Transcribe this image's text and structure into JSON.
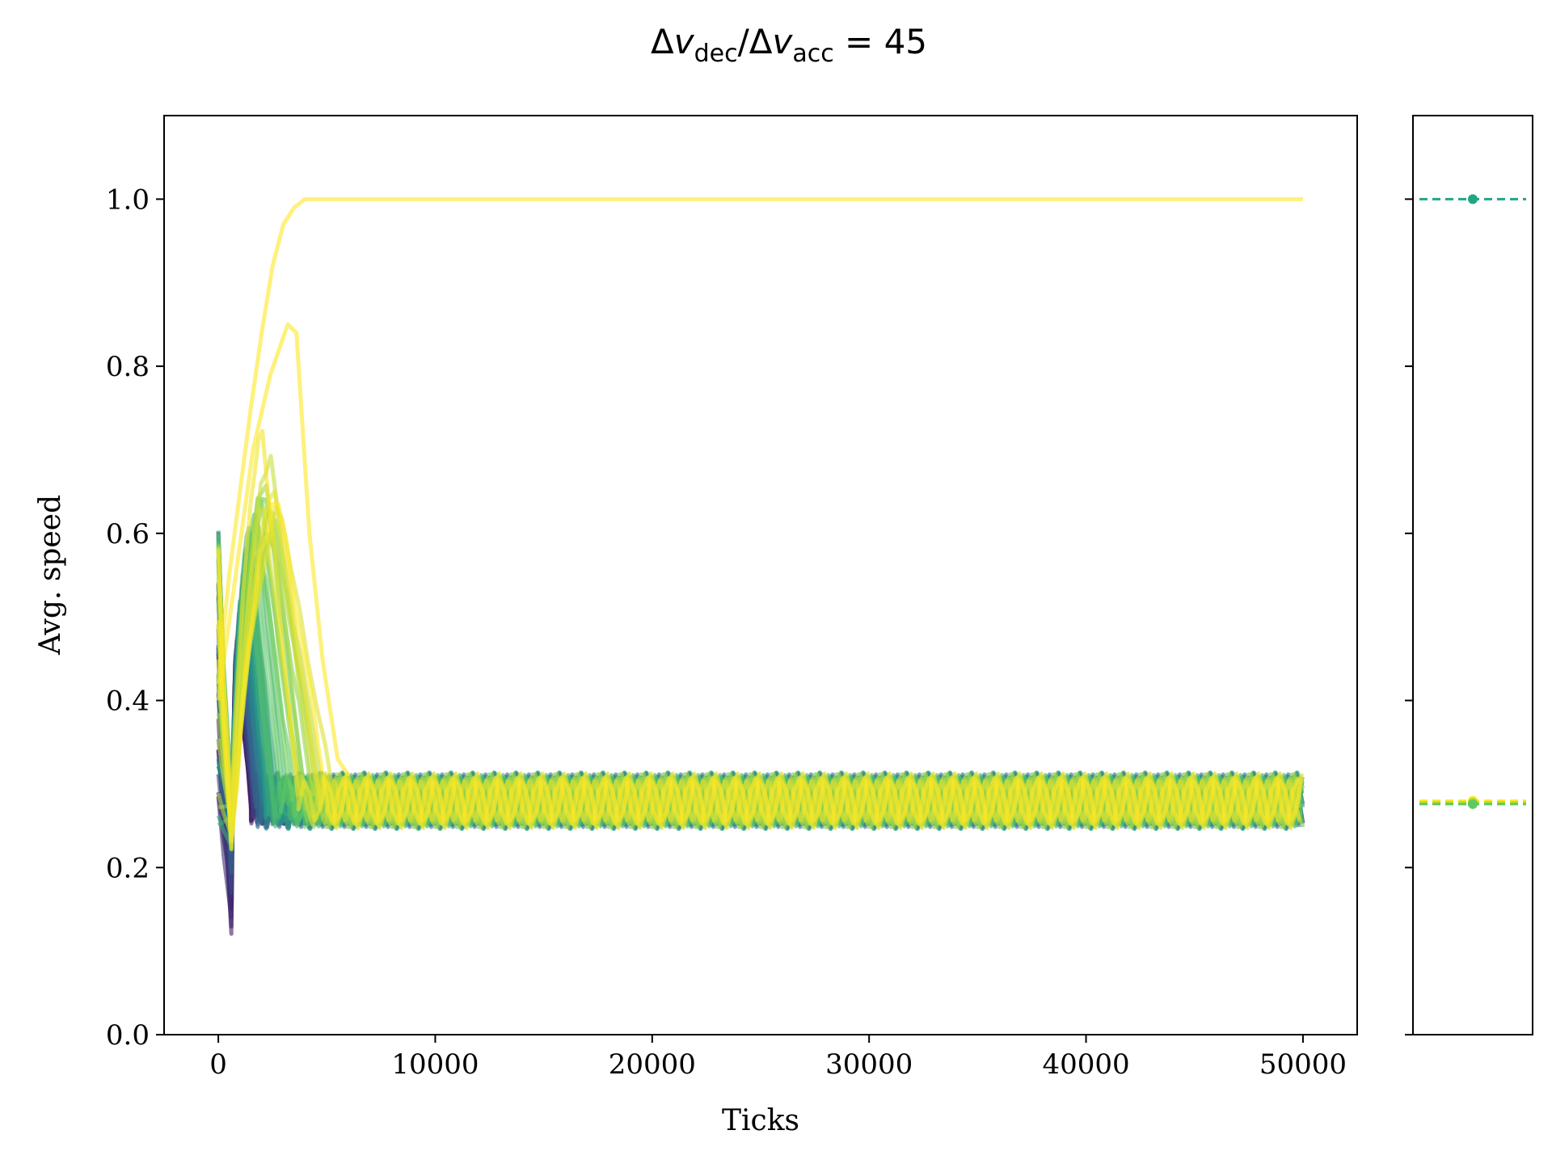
{
  "chart_data": [
    {
      "type": "line",
      "title": {
        "delta1": "Δ",
        "v1": "v",
        "sub1": "dec",
        "slash": "/",
        "delta2": "Δ",
        "v2": "v",
        "sub2": "acc",
        "tail": " = 45"
      },
      "xlabel": "Ticks",
      "ylabel": "Avg. speed",
      "xlim": [
        -2500,
        52500
      ],
      "ylim": [
        0.0,
        1.1
      ],
      "x_ticks": [
        0,
        10000,
        20000,
        30000,
        40000,
        50000
      ],
      "x_tick_labels": [
        "0",
        "10000",
        "20000",
        "30000",
        "40000",
        "50000"
      ],
      "y_ticks": [
        0.0,
        0.2,
        0.4,
        0.6,
        0.8,
        1.0
      ],
      "y_tick_labels": [
        "0.0",
        "0.2",
        "0.4",
        "0.6",
        "0.8",
        "1.0"
      ],
      "grid": false,
      "legend": "none",
      "colormap": [
        "#440154",
        "#3b528b",
        "#21918c",
        "#5ec962",
        "#fde725"
      ],
      "ensemble": {
        "count": 60,
        "x_range": [
          0,
          50000
        ],
        "steady_band": [
          0.245,
          0.315
        ],
        "oscillation_period": 1000,
        "initial_speed_range": [
          0.25,
          0.61
        ],
        "minimum_dip": 0.085,
        "transient_peak_range": [
          0.45,
          0.75
        ],
        "transient_end_range": [
          1500,
          6000
        ]
      },
      "special_series": [
        {
          "color": "#fde725",
          "points": [
            [
              0,
              0.42
            ],
            [
              500,
              0.55
            ],
            [
              1000,
              0.65
            ],
            [
              1500,
              0.75
            ],
            [
              2000,
              0.84
            ],
            [
              2500,
              0.92
            ],
            [
              3000,
              0.97
            ],
            [
              3500,
              0.99
            ],
            [
              4000,
              1.0
            ],
            [
              50000,
              1.0
            ]
          ]
        },
        {
          "color": "#fde725",
          "points": [
            [
              0,
              0.4
            ],
            [
              800,
              0.55
            ],
            [
              1600,
              0.7
            ],
            [
              2400,
              0.79
            ],
            [
              3200,
              0.85
            ],
            [
              3600,
              0.84
            ],
            [
              4200,
              0.6
            ],
            [
              4800,
              0.45
            ],
            [
              5500,
              0.33
            ],
            [
              6000,
              0.31
            ]
          ]
        }
      ]
    },
    {
      "type": "scatter",
      "ylim": [
        0.0,
        1.1
      ],
      "y_ticks": [
        0.0,
        0.2,
        0.4,
        0.6,
        0.8,
        1.0
      ],
      "points": [
        {
          "value": 1.0,
          "color": "#21a685"
        },
        {
          "value": 0.28,
          "color": "#fde725"
        },
        {
          "value": 0.278,
          "color": "#bddf26"
        },
        {
          "value": 0.276,
          "color": "#5ec962"
        }
      ]
    }
  ]
}
